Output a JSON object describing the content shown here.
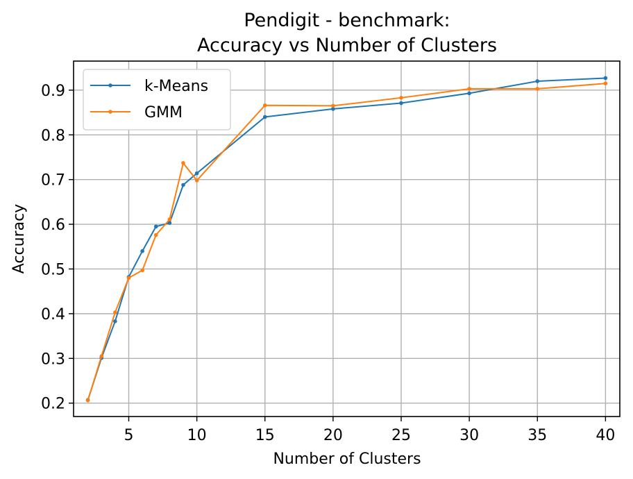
{
  "chart_data": {
    "type": "line",
    "title_line1": "Pendigit - benchmark:",
    "title_line2": "Accuracy vs Number of Clusters",
    "xlabel": "Number of Clusters",
    "ylabel": "Accuracy",
    "xlim": [
      0.95,
      41.05
    ],
    "ylim": [
      0.17,
      0.965
    ],
    "xticks": [
      5,
      10,
      15,
      20,
      25,
      30,
      35,
      40
    ],
    "yticks": [
      0.2,
      0.3,
      0.4,
      0.5,
      0.6,
      0.7,
      0.8,
      0.9
    ],
    "x": [
      2,
      3,
      4,
      5,
      6,
      7,
      8,
      9,
      10,
      15,
      20,
      25,
      30,
      35,
      40
    ],
    "series": [
      {
        "name": "k-Means",
        "color": "#1f77b4",
        "values": [
          0.207,
          0.301,
          0.383,
          0.482,
          0.54,
          0.595,
          0.603,
          0.688,
          0.714,
          0.84,
          0.858,
          0.871,
          0.893,
          0.92,
          0.927
        ]
      },
      {
        "name": "GMM",
        "color": "#ff7f0e",
        "values": [
          0.206,
          0.305,
          0.403,
          0.48,
          0.497,
          0.576,
          0.611,
          0.737,
          0.698,
          0.866,
          0.865,
          0.883,
          0.903,
          0.903,
          0.915
        ]
      }
    ],
    "grid": true,
    "legend_position": "top-left"
  }
}
